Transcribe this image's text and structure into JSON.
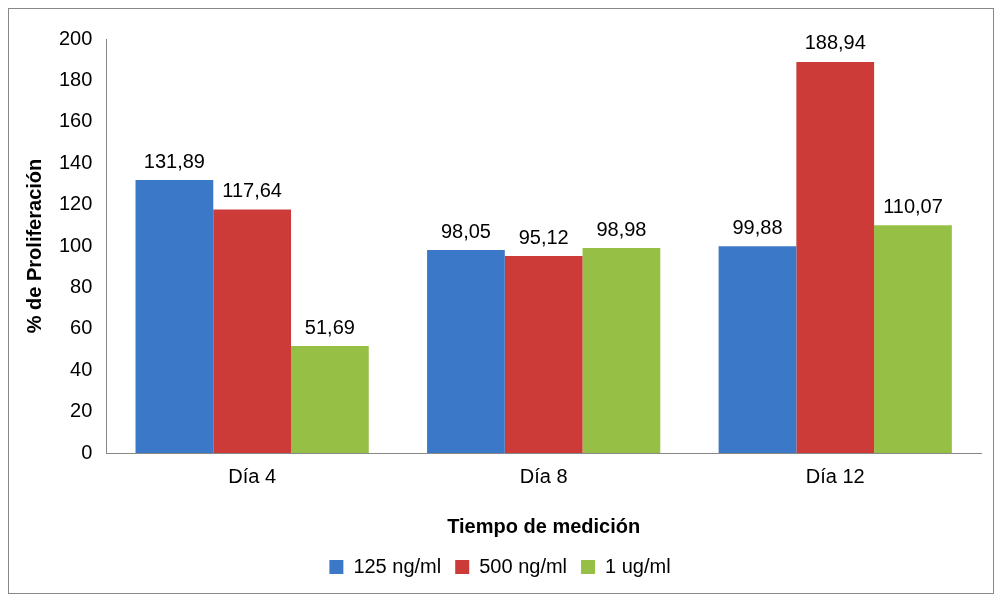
{
  "chart_data": {
    "type": "bar",
    "xlabel": "Tiempo de medición",
    "ylabel": "% de Proliferación",
    "categories": [
      "Día 4",
      "Día 8",
      "Día 12"
    ],
    "series": [
      {
        "name": "125 ng/ml",
        "color": "#3c78c8",
        "values": [
          131.89,
          98.05,
          99.88
        ],
        "value_labels": [
          "131,89",
          "98,05",
          "99,88"
        ]
      },
      {
        "name": "500 ng/ml",
        "color": "#cc3b37",
        "values": [
          117.64,
          95.12,
          188.94
        ],
        "value_labels": [
          "117,64",
          "95,12",
          "188,94"
        ]
      },
      {
        "name": "1 ug/ml",
        "color": "#96c045",
        "values": [
          51.69,
          98.98,
          110.07
        ],
        "value_labels": [
          "51,69",
          "98,98",
          "110,07"
        ]
      }
    ],
    "ylim": [
      0,
      200
    ],
    "yticks": [
      0,
      20,
      40,
      60,
      80,
      100,
      120,
      140,
      160,
      180,
      200
    ],
    "grid": false,
    "legend": "bottom"
  }
}
